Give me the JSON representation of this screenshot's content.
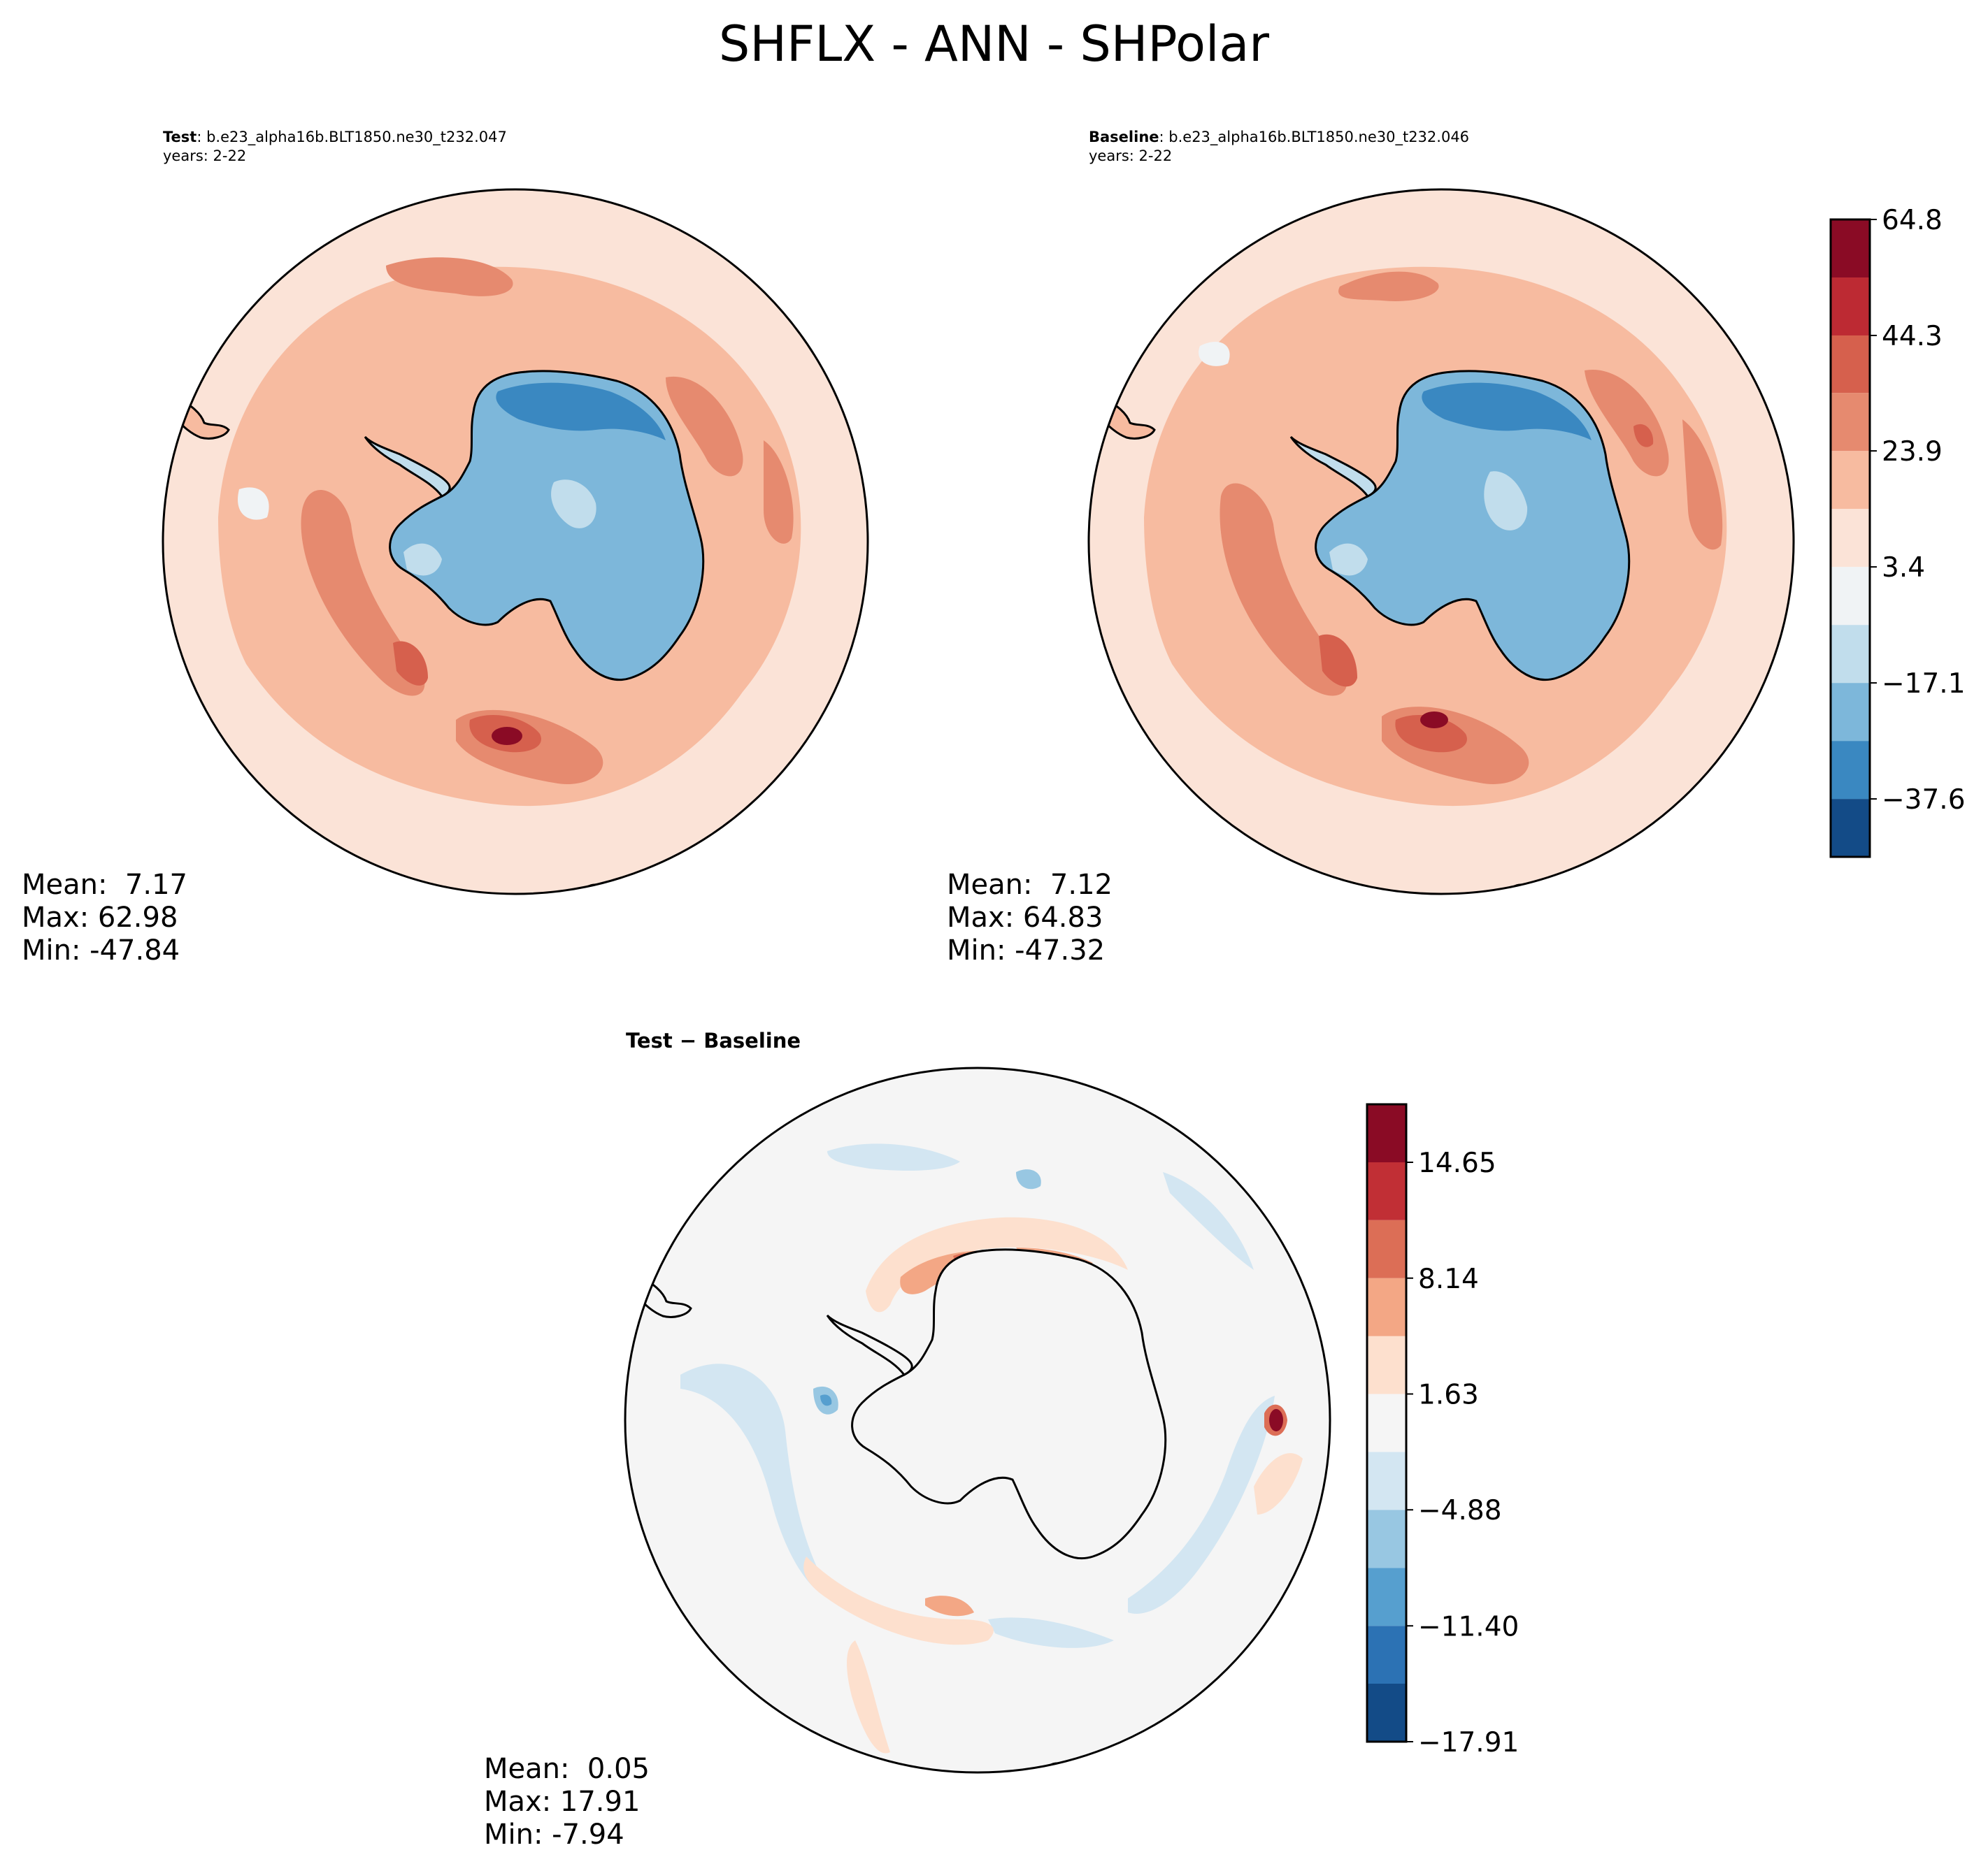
{
  "figure": {
    "title": "SHFLX - ANN - SHPolar"
  },
  "panels": {
    "test": {
      "label": "Test",
      "case": ": b.e23_alpha16b.BLT1850.ne30_t232.047",
      "years": "years: 2-22",
      "stats": {
        "mean_label": "Mean:",
        "mean": "7.17",
        "max_label": "Max:",
        "max": "62.98",
        "min_label": "Min:",
        "min": "-47.84"
      }
    },
    "baseline": {
      "label": "Baseline",
      "case": ": b.e23_alpha16b.BLT1850.ne30_t232.046",
      "years": "years: 2-22",
      "stats": {
        "mean_label": "Mean:",
        "mean": "7.12",
        "max_label": "Max:",
        "max": "64.83",
        "min_label": "Min:",
        "min": "-47.32"
      }
    },
    "diff": {
      "label_a": "Test",
      "label_sep": " − ",
      "label_b": "Baseline",
      "stats": {
        "mean_label": "Mean:",
        "mean": "0.05",
        "max_label": "Max:",
        "max": "17.91",
        "min_label": "Min:",
        "min": "-7.94"
      }
    }
  },
  "chart_data": [
    {
      "type": "heatmap",
      "title": "Test",
      "projection": "south polar stereographic",
      "colormap": "RdBu_r",
      "colorbar_ticks": [
        "64.8",
        "44.3",
        "23.9",
        "3.4",
        "−17.1",
        "−37.6"
      ],
      "colorbar_ticks_shared_with": "Baseline",
      "level_range": [
        -47.84,
        64.83
      ],
      "stats": {
        "mean": 7.17,
        "max": 62.98,
        "min": -47.84
      }
    },
    {
      "type": "heatmap",
      "title": "Baseline",
      "projection": "south polar stereographic",
      "colormap": "RdBu_r",
      "colorbar_ticks": [
        "64.8",
        "44.3",
        "23.9",
        "3.4",
        "−17.1",
        "−37.6"
      ],
      "level_range": [
        -47.84,
        64.83
      ],
      "stats": {
        "mean": 7.12,
        "max": 64.83,
        "min": -47.32
      }
    },
    {
      "type": "heatmap",
      "title": "Test − Baseline",
      "projection": "south polar stereographic",
      "colormap": "RdBu_r",
      "colorbar_ticks": [
        "14.65",
        "8.14",
        "1.63",
        "−4.88",
        "−11.40",
        "−17.91"
      ],
      "level_range": [
        -17.91,
        17.91
      ],
      "stats": {
        "mean": 0.05,
        "max": 17.91,
        "min": -7.94
      }
    }
  ],
  "colorbars": {
    "main": {
      "levels": [
        -47.84,
        -37.6,
        -27.35,
        -17.1,
        -6.85,
        3.4,
        13.65,
        23.9,
        34.15,
        44.3,
        54.55,
        64.8
      ],
      "colors": [
        "#134b87",
        "#3a88c1",
        "#7db7da",
        "#c1ddec",
        "#f0f3f5",
        "#fbe3d7",
        "#f7bba0",
        "#e68a6f",
        "#d6604d",
        "#bd2a33",
        "#8a0b25"
      ],
      "ticks": [
        "64.8",
        "44.3",
        "23.9",
        "3.4",
        "−17.1",
        "−37.6"
      ]
    },
    "diff": {
      "levels": [
        -17.91,
        -14.65,
        -11.4,
        -8.14,
        -4.88,
        -1.63,
        1.63,
        4.88,
        8.14,
        11.4,
        14.65,
        17.91
      ],
      "colors": [
        "#134b87",
        "#2c72b4",
        "#569fcf",
        "#98c7e2",
        "#d3e6f2",
        "#f5f5f5",
        "#fde0ce",
        "#f3a785",
        "#dc6e56",
        "#c12f35",
        "#8a0b25"
      ],
      "ticks": [
        "14.65",
        "8.14",
        "1.63",
        "−4.88",
        "−11.40",
        "−17.91"
      ]
    }
  },
  "colors": {
    "background": "#ffffff",
    "coastline": "#000000",
    "land_diff": "#f5f5f5"
  }
}
